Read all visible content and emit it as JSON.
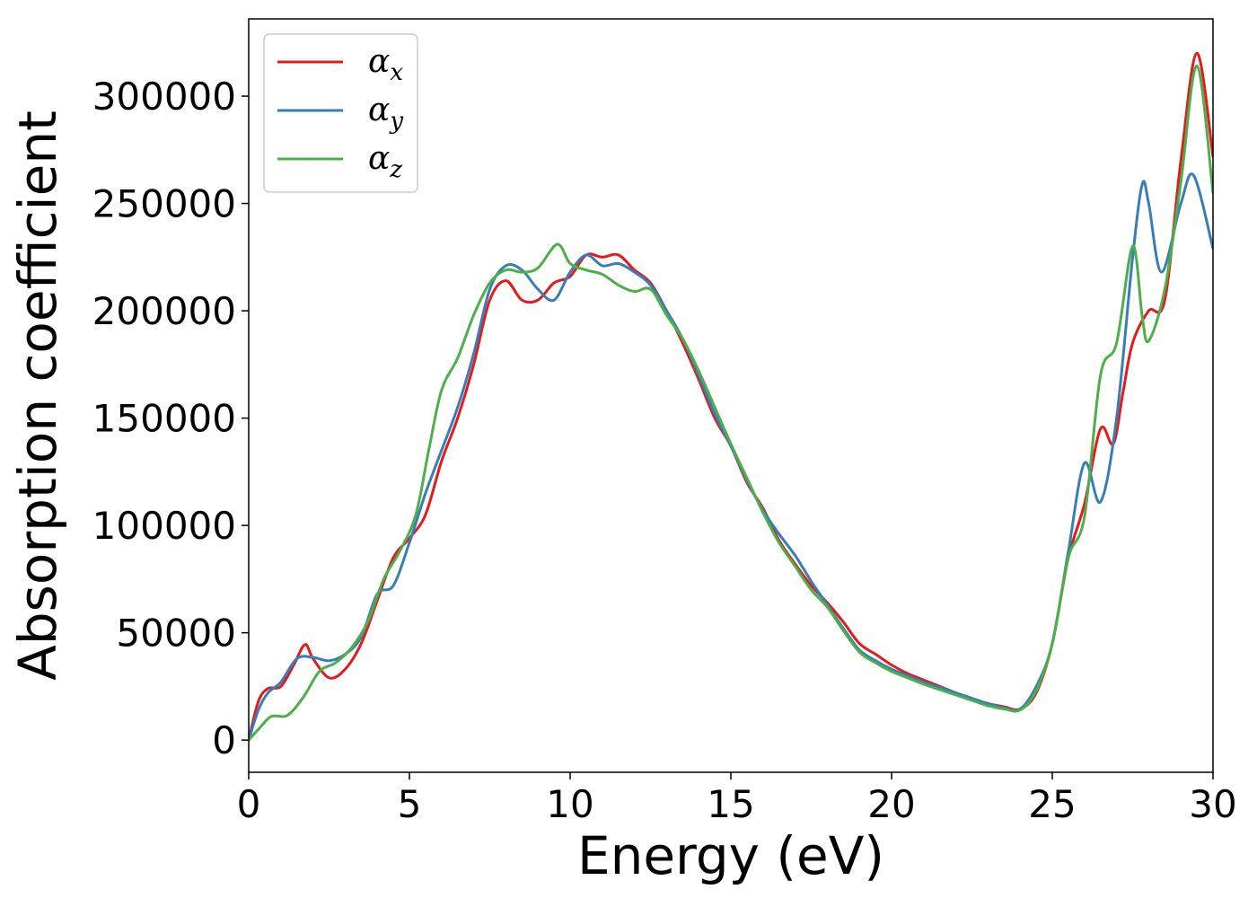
{
  "chart_data": {
    "type": "line",
    "title": "",
    "xlabel": "Energy (eV)",
    "ylabel": "Absorption coefficient",
    "xlim": [
      0,
      30
    ],
    "ylim": [
      -15000,
      336000
    ],
    "xticks": [
      0,
      5,
      10,
      15,
      20,
      25,
      30
    ],
    "xtick_labels": [
      "0",
      "5",
      "10",
      "15",
      "20",
      "25",
      "30"
    ],
    "yticks": [
      0,
      50000,
      100000,
      150000,
      200000,
      250000,
      300000
    ],
    "ytick_labels": [
      "0",
      "50000",
      "100000",
      "150000",
      "200000",
      "250000",
      "300000"
    ],
    "grid": false,
    "legend_position": "top-left",
    "series": [
      {
        "name": "α",
        "subscript": "x",
        "color": "#e41a1c",
        "points": [
          [
            0,
            0
          ],
          [
            0.3,
            18000
          ],
          [
            0.6,
            24000
          ],
          [
            1.0,
            25000
          ],
          [
            1.4,
            35000
          ],
          [
            1.75,
            44500
          ],
          [
            2.0,
            38000
          ],
          [
            2.5,
            29000
          ],
          [
            3.0,
            33000
          ],
          [
            3.5,
            45000
          ],
          [
            4.0,
            65000
          ],
          [
            4.5,
            85000
          ],
          [
            5.0,
            94000
          ],
          [
            5.5,
            105000
          ],
          [
            6.0,
            130000
          ],
          [
            6.5,
            150000
          ],
          [
            7.0,
            175000
          ],
          [
            7.5,
            205000
          ],
          [
            8.0,
            214000
          ],
          [
            8.5,
            205000
          ],
          [
            9.0,
            205000
          ],
          [
            9.5,
            213000
          ],
          [
            10.0,
            216000
          ],
          [
            10.5,
            226000
          ],
          [
            11.0,
            225000
          ],
          [
            11.5,
            226000
          ],
          [
            12.0,
            219000
          ],
          [
            12.5,
            213000
          ],
          [
            13.0,
            200000
          ],
          [
            13.5,
            185000
          ],
          [
            14.0,
            168000
          ],
          [
            14.5,
            150000
          ],
          [
            15.0,
            137000
          ],
          [
            15.5,
            120000
          ],
          [
            16.0,
            108000
          ],
          [
            16.5,
            93000
          ],
          [
            17.0,
            82000
          ],
          [
            17.5,
            72000
          ],
          [
            18.0,
            64000
          ],
          [
            18.5,
            55000
          ],
          [
            19.0,
            45000
          ],
          [
            19.5,
            40000
          ],
          [
            20.0,
            35000
          ],
          [
            20.5,
            31000
          ],
          [
            21.0,
            28000
          ],
          [
            21.5,
            25000
          ],
          [
            22.0,
            22000
          ],
          [
            22.5,
            19000
          ],
          [
            23.0,
            17000
          ],
          [
            23.5,
            15500
          ],
          [
            24.0,
            14500
          ],
          [
            24.5,
            22000
          ],
          [
            25.0,
            45000
          ],
          [
            25.5,
            85000
          ],
          [
            26.0,
            110000
          ],
          [
            26.5,
            145000
          ],
          [
            26.9,
            138000
          ],
          [
            27.2,
            162000
          ],
          [
            27.5,
            185000
          ],
          [
            28.0,
            200000
          ],
          [
            28.5,
            205000
          ],
          [
            29.0,
            270000
          ],
          [
            29.5,
            320000
          ],
          [
            30.0,
            272000
          ]
        ]
      },
      {
        "name": "α",
        "subscript": "y",
        "color": "#377eb8",
        "points": [
          [
            0,
            0
          ],
          [
            0.3,
            14000
          ],
          [
            0.6,
            22000
          ],
          [
            1.0,
            27000
          ],
          [
            1.5,
            38000
          ],
          [
            2.0,
            38500
          ],
          [
            2.5,
            37000
          ],
          [
            3.0,
            40000
          ],
          [
            3.5,
            48000
          ],
          [
            4.0,
            68000
          ],
          [
            4.5,
            72000
          ],
          [
            5.0,
            92000
          ],
          [
            5.5,
            115000
          ],
          [
            6.0,
            135000
          ],
          [
            6.5,
            155000
          ],
          [
            7.0,
            180000
          ],
          [
            7.5,
            210000
          ],
          [
            8.0,
            221000
          ],
          [
            8.5,
            219000
          ],
          [
            9.0,
            210000
          ],
          [
            9.5,
            205000
          ],
          [
            10.0,
            218000
          ],
          [
            10.5,
            226000
          ],
          [
            11.0,
            221000
          ],
          [
            11.5,
            222000
          ],
          [
            12.0,
            218000
          ],
          [
            12.5,
            212000
          ],
          [
            13.0,
            200000
          ],
          [
            13.5,
            187000
          ],
          [
            14.0,
            170000
          ],
          [
            14.5,
            152000
          ],
          [
            15.0,
            137000
          ],
          [
            15.5,
            121000
          ],
          [
            16.0,
            107000
          ],
          [
            16.5,
            96000
          ],
          [
            17.0,
            86000
          ],
          [
            17.5,
            74000
          ],
          [
            18.0,
            63000
          ],
          [
            18.5,
            52000
          ],
          [
            19.0,
            42000
          ],
          [
            19.5,
            37000
          ],
          [
            20.0,
            33000
          ],
          [
            20.5,
            30000
          ],
          [
            21.0,
            27000
          ],
          [
            21.5,
            24500
          ],
          [
            22.0,
            22000
          ],
          [
            22.5,
            19500
          ],
          [
            23.0,
            17000
          ],
          [
            23.5,
            15000
          ],
          [
            24.0,
            14500
          ],
          [
            24.5,
            25000
          ],
          [
            25.0,
            45000
          ],
          [
            25.5,
            88000
          ],
          [
            26.0,
            129000
          ],
          [
            26.5,
            111000
          ],
          [
            27.0,
            150000
          ],
          [
            27.5,
            225000
          ],
          [
            27.8,
            259000
          ],
          [
            28.0,
            250000
          ],
          [
            28.4,
            218000
          ],
          [
            29.0,
            250000
          ],
          [
            29.4,
            263000
          ],
          [
            30.0,
            229000
          ]
        ]
      },
      {
        "name": "α",
        "subscript": "z",
        "color": "#4daf4a",
        "points": [
          [
            0,
            0
          ],
          [
            0.3,
            5000
          ],
          [
            0.7,
            11000
          ],
          [
            1.2,
            11500
          ],
          [
            1.7,
            20000
          ],
          [
            2.2,
            32000
          ],
          [
            2.7,
            36000
          ],
          [
            3.2,
            43000
          ],
          [
            3.7,
            55000
          ],
          [
            4.2,
            75000
          ],
          [
            4.7,
            88000
          ],
          [
            5.2,
            105000
          ],
          [
            5.6,
            135000
          ],
          [
            6.0,
            163000
          ],
          [
            6.5,
            178000
          ],
          [
            7.0,
            198000
          ],
          [
            7.5,
            213000
          ],
          [
            8.0,
            219000
          ],
          [
            8.5,
            218000
          ],
          [
            9.0,
            220000
          ],
          [
            9.6,
            231000
          ],
          [
            10.0,
            222000
          ],
          [
            10.5,
            219000
          ],
          [
            11.0,
            217000
          ],
          [
            11.5,
            212000
          ],
          [
            12.0,
            209000
          ],
          [
            12.5,
            210000
          ],
          [
            13.0,
            198000
          ],
          [
            13.5,
            187000
          ],
          [
            14.0,
            172000
          ],
          [
            14.5,
            155000
          ],
          [
            15.0,
            138000
          ],
          [
            15.5,
            122000
          ],
          [
            16.0,
            106000
          ],
          [
            16.5,
            92000
          ],
          [
            17.0,
            81000
          ],
          [
            17.5,
            70000
          ],
          [
            18.0,
            62000
          ],
          [
            18.5,
            51000
          ],
          [
            19.0,
            41000
          ],
          [
            19.5,
            36000
          ],
          [
            20.0,
            32000
          ],
          [
            20.5,
            29000
          ],
          [
            21.0,
            26000
          ],
          [
            21.5,
            23500
          ],
          [
            22.0,
            21000
          ],
          [
            22.5,
            18500
          ],
          [
            23.0,
            16000
          ],
          [
            23.5,
            14500
          ],
          [
            24.0,
            14000
          ],
          [
            24.5,
            23000
          ],
          [
            25.0,
            45000
          ],
          [
            25.5,
            85000
          ],
          [
            26.0,
            104000
          ],
          [
            26.5,
            170000
          ],
          [
            27.0,
            185000
          ],
          [
            27.5,
            230000
          ],
          [
            27.8,
            197000
          ],
          [
            28.0,
            186000
          ],
          [
            28.5,
            210000
          ],
          [
            29.0,
            260000
          ],
          [
            29.5,
            314000
          ],
          [
            30.0,
            255000
          ]
        ]
      }
    ]
  }
}
